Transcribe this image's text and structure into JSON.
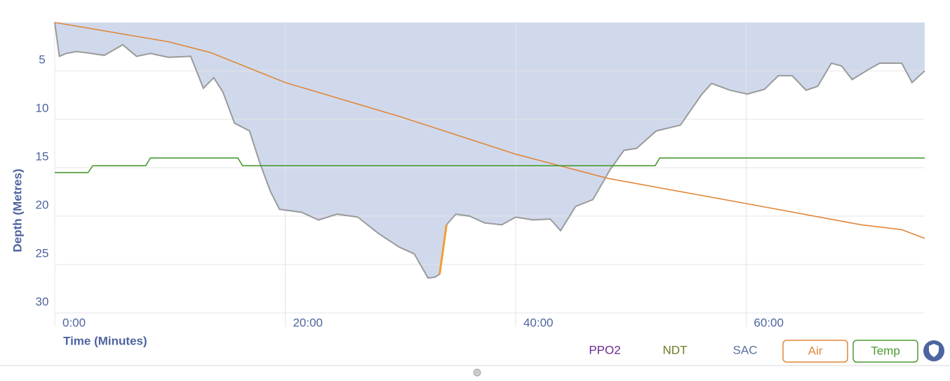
{
  "chart_data": {
    "type": "area",
    "ylabel": "Depth (Metres)",
    "xlabel": "Time (Minutes)",
    "xlim": [
      0,
      75.5
    ],
    "ylim": [
      0,
      30
    ],
    "yinverted": true,
    "grid": true,
    "yticks": [
      5,
      10,
      15,
      20,
      25,
      30
    ],
    "xticks": [
      {
        "value": 0,
        "label": "0:00"
      },
      {
        "value": 20,
        "label": "20:00"
      },
      {
        "value": 40,
        "label": "40:00"
      },
      {
        "value": 60,
        "label": "60:00"
      }
    ],
    "profile": {
      "fill": "#d0d9ec",
      "color": "#9a9a9a",
      "warning_color": "#f0a030",
      "warning_segment": [
        28,
        29
      ],
      "x": [
        0,
        0.4,
        1.0,
        1.9,
        3.2,
        4.3,
        5.9,
        7.1,
        8.3,
        9.9,
        11.8,
        12.9,
        13.8,
        14.6,
        15.6,
        16.9,
        17.8,
        18.7,
        19.5,
        21.4,
        22.9,
        24.5,
        26.3,
        28.1,
        29.9,
        31.2,
        32.4,
        33.0,
        33.4,
        34.0,
        34.8,
        36.0,
        37.3,
        38.8,
        40.0,
        41.5,
        43.0,
        43.9,
        45.2,
        46.7,
        48.2,
        49.4,
        50.5,
        52.2,
        54.3,
        56.1,
        57.0,
        58.6,
        60.1,
        61.6,
        62.8,
        64.0,
        65.2,
        66.2,
        67.4,
        68.3,
        69.2,
        70.7,
        71.6,
        73.5,
        74.4,
        75.5
      ],
      "values": [
        0,
        3.5,
        3.2,
        3.0,
        3.2,
        3.4,
        2.3,
        3.5,
        3.2,
        3.6,
        3.5,
        6.8,
        5.7,
        7.2,
        10.4,
        11.2,
        14.5,
        17.4,
        19.3,
        19.6,
        20.4,
        19.8,
        20.1,
        21.8,
        23.2,
        23.9,
        26.4,
        26.3,
        26.0,
        20.9,
        19.8,
        20.0,
        20.7,
        20.9,
        20.1,
        20.4,
        20.3,
        21.5,
        19.0,
        18.3,
        15.2,
        13.2,
        13.0,
        11.2,
        10.6,
        7.5,
        6.3,
        7.0,
        7.4,
        6.9,
        5.5,
        5.5,
        7.0,
        6.6,
        4.2,
        4.5,
        5.9,
        4.8,
        4.2,
        4.2,
        6.2,
        5.0
      ]
    },
    "series": [
      {
        "name": "Air",
        "color": "#e0873a",
        "x": [
          0,
          9.9,
          13.5,
          20,
          29.9,
          40,
          48,
          60,
          70,
          73.5,
          75.5
        ],
        "values": [
          0,
          2.0,
          3.1,
          6.2,
          9.7,
          13.6,
          16.1,
          18.7,
          20.9,
          21.4,
          22.3
        ]
      },
      {
        "name": "Temp",
        "color": "#4a9a32",
        "x": [
          0,
          2.9,
          3.3,
          7.9,
          8.3,
          15.9,
          16.3,
          52.1,
          52.5,
          75.5
        ],
        "values": [
          15.5,
          15.5,
          14.8,
          14.8,
          14.0,
          14.0,
          14.8,
          14.8,
          14.0,
          14.0
        ]
      }
    ],
    "toggles": [
      {
        "name": "PPO2",
        "color": "#6b2a8c"
      },
      {
        "name": "NDT",
        "color": "#6e7a22"
      },
      {
        "name": "SAC",
        "color": "#5a6fa0"
      }
    ]
  }
}
